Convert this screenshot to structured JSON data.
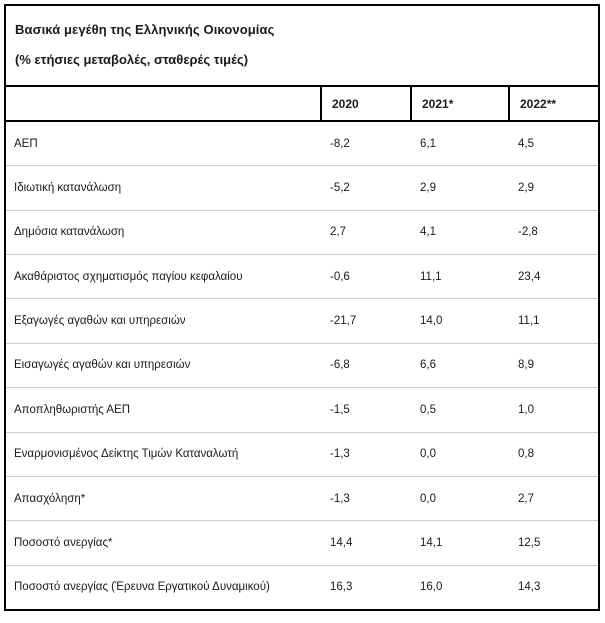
{
  "table": {
    "title": "Βασικά μεγέθη της Ελληνικής Οικονομίας",
    "subtitle": "(% ετήσιες μεταβολές, σταθερές τιμές)",
    "columns": [
      "2020",
      "2021*",
      "2022**"
    ],
    "rows": [
      {
        "label": "ΑΕΠ",
        "values": [
          "-8,2",
          "6,1",
          "4,5"
        ]
      },
      {
        "label": "Ιδιωτική κατανάλωση",
        "values": [
          "-5,2",
          "2,9",
          "2,9"
        ]
      },
      {
        "label": "Δημόσια κατανάλωση",
        "values": [
          "2,7",
          "4,1",
          "-2,8"
        ]
      },
      {
        "label": "Ακαθάριστος σχηματισμός παγίου κεφαλαίου",
        "values": [
          "-0,6",
          "11,1",
          "23,4"
        ]
      },
      {
        "label": "Εξαγωγές αγαθών και υπηρεσιών",
        "values": [
          "-21,7",
          "14,0",
          "11,1"
        ]
      },
      {
        "label": "Εισαγωγές αγαθών και υπηρεσιών",
        "values": [
          "-6,8",
          "6,6",
          "8,9"
        ]
      },
      {
        "label": "Αποπληθωριστής ΑΕΠ",
        "values": [
          "-1,5",
          "0,5",
          "1,0"
        ]
      },
      {
        "label": "Εναρμονισμένος Δείκτης Τιμών Καταναλωτή",
        "values": [
          "-1,3",
          "0,0",
          "0,8"
        ]
      },
      {
        "label": "Απασχόληση*",
        "values": [
          "-1,3",
          "0,0",
          "2,7"
        ]
      },
      {
        "label": "Ποσοστό ανεργίας*",
        "values": [
          "14,4",
          "14,1",
          "12,5"
        ]
      },
      {
        "label": "Ποσοστό ανεργίας (Έρευνα Εργατικού Δυναμικού)",
        "values": [
          "16,3",
          "16,0",
          "14,3"
        ]
      }
    ]
  },
  "chart_data": {
    "type": "table",
    "title": "Βασικά μεγέθη της Ελληνικής Οικονομίας (% ετήσιες μεταβολές, σταθερές τιμές)",
    "categories": [
      "2020",
      "2021*",
      "2022**"
    ],
    "series": [
      {
        "name": "ΑΕΠ",
        "values": [
          -8.2,
          6.1,
          4.5
        ]
      },
      {
        "name": "Ιδιωτική κατανάλωση",
        "values": [
          -5.2,
          2.9,
          2.9
        ]
      },
      {
        "name": "Δημόσια κατανάλωση",
        "values": [
          2.7,
          4.1,
          -2.8
        ]
      },
      {
        "name": "Ακαθάριστος σχηματισμός παγίου κεφαλαίου",
        "values": [
          -0.6,
          11.1,
          23.4
        ]
      },
      {
        "name": "Εξαγωγές αγαθών και υπηρεσιών",
        "values": [
          -21.7,
          14.0,
          11.1
        ]
      },
      {
        "name": "Εισαγωγές αγαθών και υπηρεσιών",
        "values": [
          -6.8,
          6.6,
          8.9
        ]
      },
      {
        "name": "Αποπληθωριστής ΑΕΠ",
        "values": [
          -1.5,
          0.5,
          1.0
        ]
      },
      {
        "name": "Εναρμονισμένος Δείκτης Τιμών Καταναλωτή",
        "values": [
          -1.3,
          0.0,
          0.8
        ]
      },
      {
        "name": "Απασχόληση*",
        "values": [
          -1.3,
          0.0,
          2.7
        ]
      },
      {
        "name": "Ποσοστό ανεργίας*",
        "values": [
          14.4,
          14.1,
          12.5
        ]
      },
      {
        "name": "Ποσοστό ανεργίας (Έρευνα Εργατικού Δυναμικού)",
        "values": [
          16.3,
          16.0,
          14.3
        ]
      }
    ],
    "colors": {
      "border": "#000000",
      "row_separator": "#cccccc",
      "text": "#1a1a1a",
      "background": "#ffffff"
    }
  }
}
